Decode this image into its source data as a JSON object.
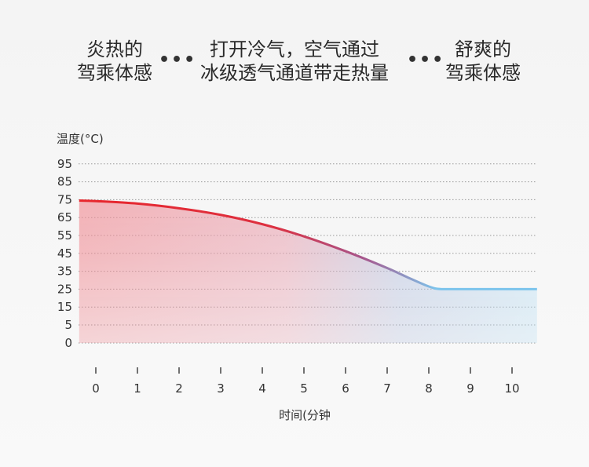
{
  "header": {
    "left": {
      "line1": "炎热的",
      "line2": "驾乘体感"
    },
    "middle": {
      "line1": "打开冷气，空气通过",
      "line2": "冰级透气通道带走热量"
    },
    "right": {
      "line1": "舒爽的",
      "line2": "驾乘体感"
    },
    "separator": "•••"
  },
  "colors": {
    "hot": "#e8262c",
    "cool": "#7cc4ec",
    "grid": "#9a9a9a"
  },
  "chart_data": {
    "type": "area",
    "xlabel": "时间(分钟",
    "ylabel": "温度(°C)",
    "x_ticks": [
      0,
      1,
      2,
      3,
      4,
      5,
      6,
      7,
      8,
      9,
      10
    ],
    "y_ticks": [
      0,
      5,
      15,
      25,
      35,
      45,
      55,
      65,
      75,
      85,
      95
    ],
    "xlim": [
      0,
      10.6
    ],
    "ylim": [
      0,
      95
    ],
    "grid": true,
    "series": [
      {
        "x": [
          -0.4,
          0,
          1,
          2,
          3,
          4,
          5,
          6,
          7,
          7.5,
          8,
          8.3,
          9,
          10,
          10.6
        ],
        "y": [
          74.5,
          74.2,
          72.8,
          70.2,
          66.5,
          61.3,
          54.5,
          46.2,
          36.8,
          31.5,
          26.5,
          25,
          25,
          25,
          25
        ]
      }
    ]
  }
}
